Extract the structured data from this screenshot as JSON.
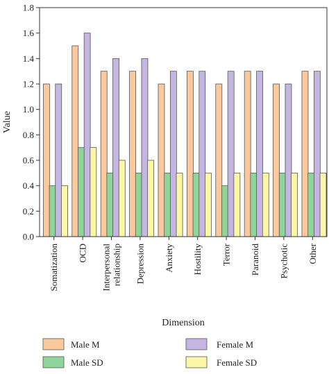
{
  "chart_data": {
    "type": "bar",
    "xlabel": "Dimension",
    "ylabel": "Value",
    "ylim": [
      0,
      1.8
    ],
    "yticks": [
      "0.0",
      "0.2",
      "0.4",
      "0.6",
      "0.8",
      "1.0",
      "1.2",
      "1.4",
      "1.6",
      "1.8"
    ],
    "grid": false,
    "legend_position": "bottom",
    "categories": [
      [
        "Somatization"
      ],
      [
        "OCD"
      ],
      [
        "Interpersonal",
        "relationship"
      ],
      [
        "Depression"
      ],
      [
        "Anxiety"
      ],
      [
        "Hostility"
      ],
      [
        "Terror"
      ],
      [
        "Paranoid"
      ],
      [
        "Psychotic"
      ],
      [
        "Other"
      ]
    ],
    "series": [
      {
        "name": "Male M",
        "color": "#fbc99c",
        "values": [
          1.2,
          1.5,
          1.3,
          1.3,
          1.2,
          1.3,
          1.2,
          1.3,
          1.2,
          1.3
        ]
      },
      {
        "name": "Male SD",
        "color": "#8fd49a",
        "values": [
          0.4,
          0.7,
          0.5,
          0.5,
          0.5,
          0.5,
          0.4,
          0.5,
          0.5,
          0.5
        ]
      },
      {
        "name": "Female M",
        "color": "#c5b6e1",
        "values": [
          1.2,
          1.6,
          1.4,
          1.4,
          1.3,
          1.3,
          1.3,
          1.3,
          1.2,
          1.3
        ]
      },
      {
        "name": "Female SD",
        "color": "#fbf7a6",
        "values": [
          0.4,
          0.7,
          0.6,
          0.6,
          0.5,
          0.5,
          0.5,
          0.5,
          0.5,
          0.5
        ]
      }
    ],
    "legend_order": [
      0,
      1,
      2,
      3
    ]
  }
}
